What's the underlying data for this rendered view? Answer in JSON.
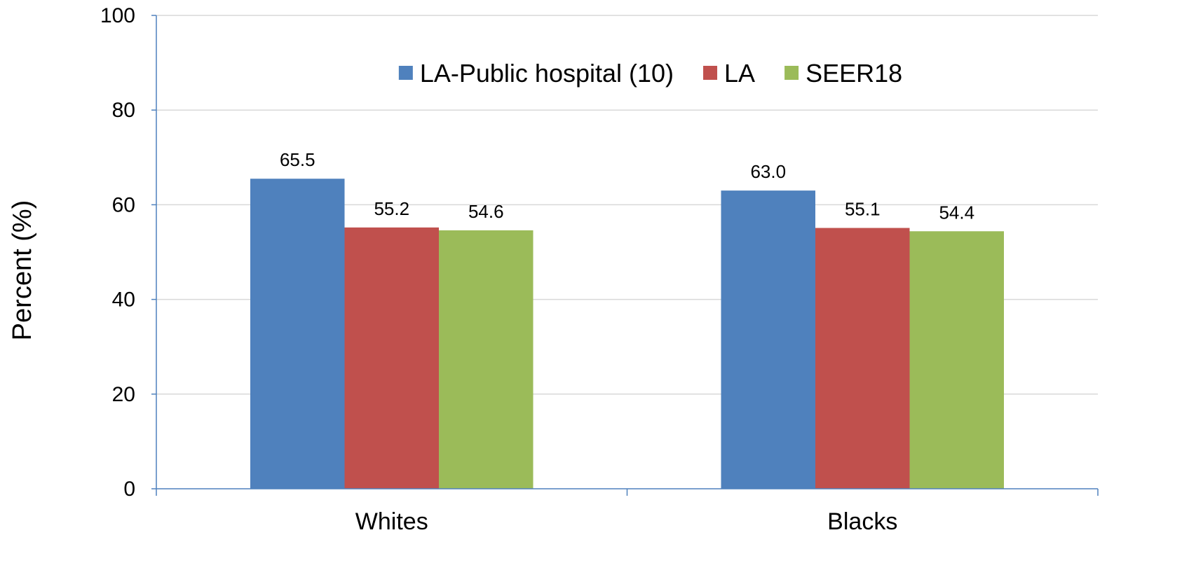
{
  "chart_data": {
    "type": "bar",
    "title": "",
    "xlabel": "",
    "ylabel": "Percent (%)",
    "ylim": [
      0,
      100
    ],
    "yticks": [
      0,
      20,
      40,
      60,
      80,
      100
    ],
    "grid": true,
    "legend_position": "top-center",
    "categories": [
      "Whites",
      "Blacks"
    ],
    "series": [
      {
        "name": "LA-Public hospital (10)",
        "color": "#4F81BD",
        "values": [
          65.5,
          63.0
        ],
        "labels": [
          "65.5",
          "63.0"
        ]
      },
      {
        "name": "LA",
        "color": "#C0504D",
        "values": [
          55.2,
          55.1
        ],
        "labels": [
          "55.2",
          "55.1"
        ]
      },
      {
        "name": "SEER18",
        "color": "#9BBB59",
        "values": [
          54.6,
          54.4
        ],
        "labels": [
          "54.6",
          "54.4"
        ]
      }
    ]
  }
}
